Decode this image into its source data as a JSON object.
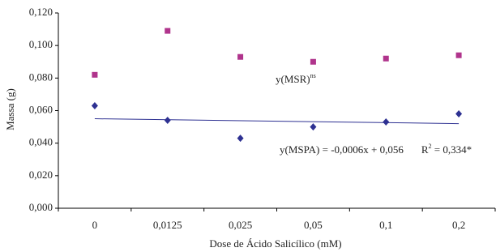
{
  "chart_data": {
    "type": "scatter",
    "y_label": "Massa (g)",
    "x_label": "Dose de Ácido Salicílico (mM)",
    "categories": [
      "0",
      "0,0125",
      "0,025",
      "0,05",
      "0,1",
      "0,2"
    ],
    "series": [
      {
        "name": "MSR",
        "color": "#b0348c",
        "marker": "square",
        "values": [
          0.082,
          0.109,
          0.093,
          0.09,
          0.092,
          0.094
        ]
      },
      {
        "name": "MSPA",
        "color": "#2e3192",
        "marker": "diamond",
        "values": [
          0.063,
          0.054,
          0.043,
          0.05,
          0.053,
          0.058
        ]
      }
    ],
    "trendline": {
      "color": "#2e3192",
      "values": [
        0.055,
        0.052
      ]
    },
    "annotations": {
      "msr": {
        "text": "y(MSR)",
        "sup": "ns"
      },
      "mspa": {
        "text": "y(MSPA) = -0,0006x + 0,056",
        "r": "R",
        "sup": "2",
        "rest": " = 0,334*"
      }
    },
    "ylim": [
      0,
      0.12
    ],
    "yticks": [
      {
        "value": 0,
        "label": "0,000"
      },
      {
        "value": 0.02,
        "label": "0,020"
      },
      {
        "value": 0.04,
        "label": "0,040"
      },
      {
        "value": 0.06,
        "label": "0,060"
      },
      {
        "value": 0.08,
        "label": "0,080"
      },
      {
        "value": 0.1,
        "label": "0,100"
      },
      {
        "value": 0.12,
        "label": "0,120"
      }
    ],
    "grid": false
  }
}
